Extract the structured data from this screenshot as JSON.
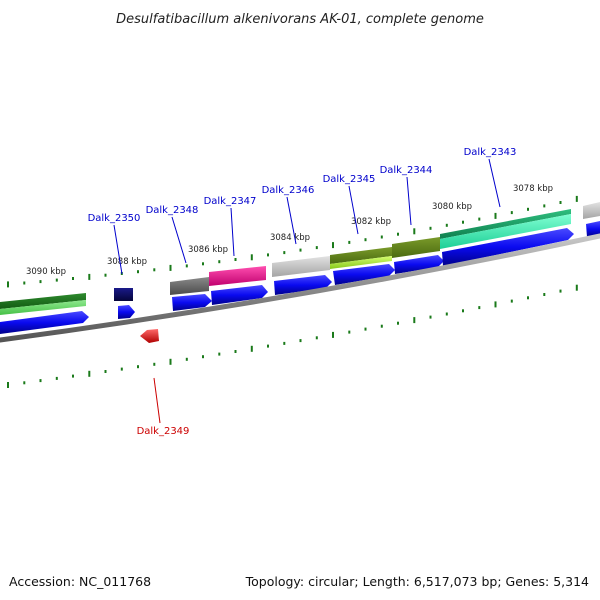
{
  "title": "Desulfatibacillum alkenivorans AK-01, complete genome",
  "footer": {
    "accession": "Accession: NC_011768",
    "summary": "Topology: circular; Length: 6,517,073 bp; Genes: 5,314"
  },
  "colors": {
    "label_forward": "#0000cc",
    "label_reverse": "#cc0000",
    "backbone": "#8c8c8c",
    "tick": "#1a7a1a",
    "cds_forward": "#0a0af0",
    "cds_reverse": "#ee1111"
  },
  "kbp_labels": [
    "3090 kbp",
    "3088 kbp",
    "3086 kbp",
    "3084 kbp",
    "3082 kbp",
    "3080 kbp",
    "3078 kbp"
  ],
  "gene_labels": [
    {
      "id": "Dalk_2350",
      "strand": "forward"
    },
    {
      "id": "Dalk_2348",
      "strand": "forward"
    },
    {
      "id": "Dalk_2347",
      "strand": "forward"
    },
    {
      "id": "Dalk_2346",
      "strand": "forward"
    },
    {
      "id": "Dalk_2345",
      "strand": "forward"
    },
    {
      "id": "Dalk_2344",
      "strand": "forward"
    },
    {
      "id": "Dalk_2343",
      "strand": "forward"
    },
    {
      "id": "Dalk_2349",
      "strand": "reverse"
    }
  ]
}
